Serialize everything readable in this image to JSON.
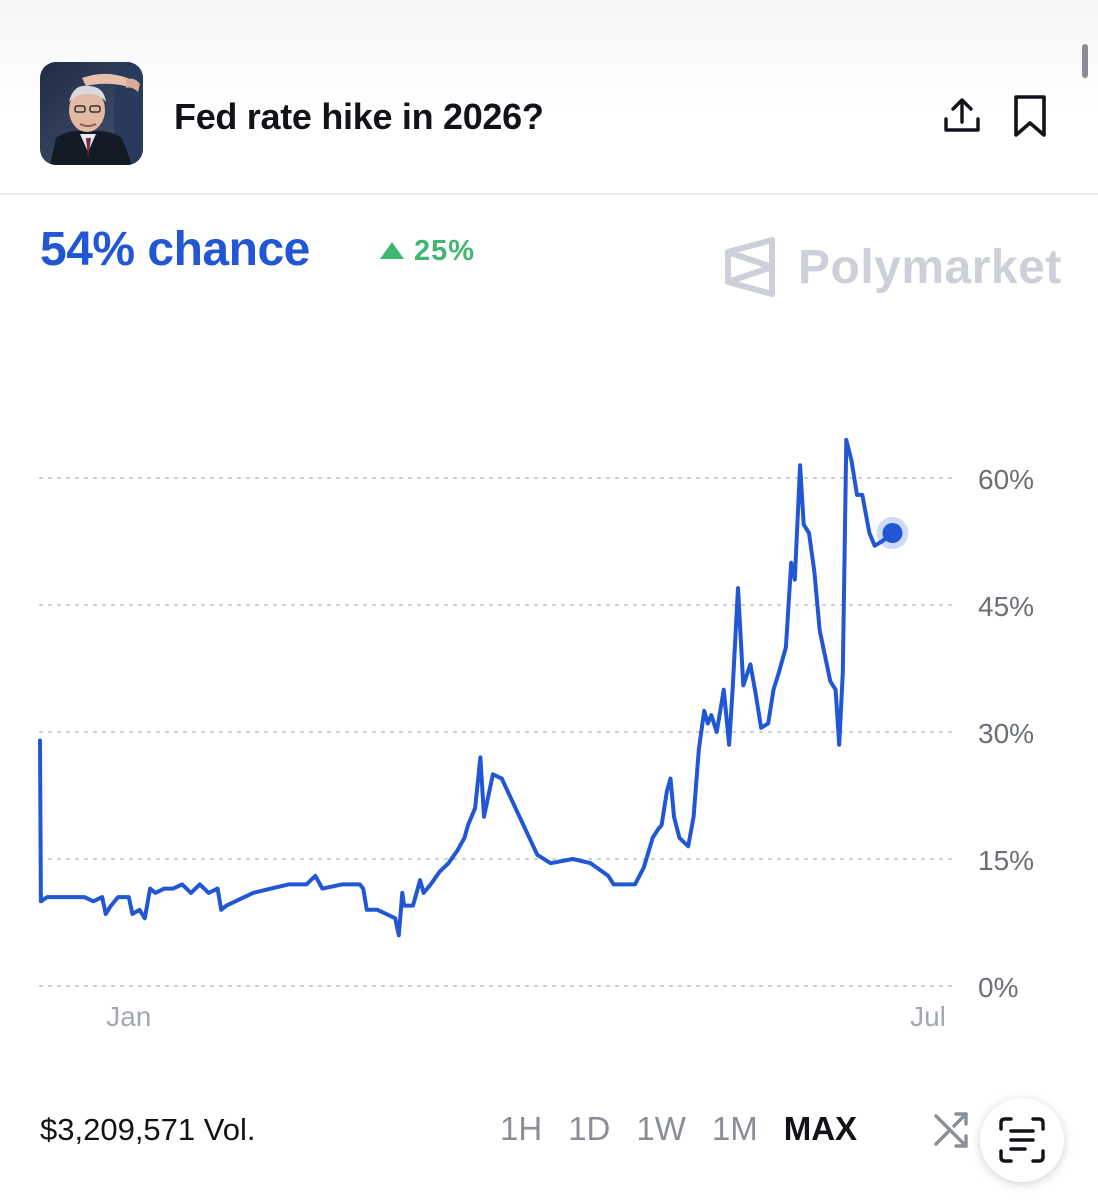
{
  "header": {
    "title": "Fed rate hike in 2026?",
    "share_icon": "share-icon",
    "bookmark_icon": "bookmark-icon"
  },
  "summary": {
    "chance": "54% chance",
    "change": "25%",
    "brand": "Polymarket",
    "accent": "#2156d4",
    "up_color": "#3fb672"
  },
  "chart_data": {
    "type": "line",
    "grid": true,
    "legend": "none",
    "ylim": [
      0,
      68
    ],
    "yticks": [
      "0%",
      "15%",
      "30%",
      "45%",
      "60%"
    ],
    "ytick_values": [
      0,
      15,
      30,
      45,
      60
    ],
    "x_ticks": [
      {
        "label": "Jan",
        "x": 0.1
      },
      {
        "label": "Jul",
        "x": 1.0
      }
    ],
    "xlim": [
      0,
      1
    ],
    "series": [
      {
        "color": "#2156d4",
        "points": [
          [
            0.0,
            29
          ],
          [
            0.001,
            10
          ],
          [
            0.008,
            10.5
          ],
          [
            0.03,
            10.5
          ],
          [
            0.05,
            10.5
          ],
          [
            0.06,
            10
          ],
          [
            0.07,
            10.5
          ],
          [
            0.074,
            8.5
          ],
          [
            0.08,
            9.5
          ],
          [
            0.088,
            10.5
          ],
          [
            0.1,
            10.5
          ],
          [
            0.104,
            8.5
          ],
          [
            0.112,
            9
          ],
          [
            0.118,
            8
          ],
          [
            0.124,
            11.5
          ],
          [
            0.13,
            11
          ],
          [
            0.14,
            11.5
          ],
          [
            0.15,
            11.5
          ],
          [
            0.16,
            12
          ],
          [
            0.17,
            11
          ],
          [
            0.18,
            12
          ],
          [
            0.19,
            11
          ],
          [
            0.2,
            11.5
          ],
          [
            0.204,
            9
          ],
          [
            0.21,
            9.5
          ],
          [
            0.22,
            10
          ],
          [
            0.24,
            11
          ],
          [
            0.26,
            11.5
          ],
          [
            0.28,
            12
          ],
          [
            0.3,
            12
          ],
          [
            0.31,
            13
          ],
          [
            0.318,
            11.5
          ],
          [
            0.34,
            12
          ],
          [
            0.36,
            12
          ],
          [
            0.364,
            11.5
          ],
          [
            0.368,
            9
          ],
          [
            0.38,
            9
          ],
          [
            0.39,
            8.5
          ],
          [
            0.4,
            8
          ],
          [
            0.404,
            6
          ],
          [
            0.408,
            11
          ],
          [
            0.41,
            9.5
          ],
          [
            0.42,
            9.5
          ],
          [
            0.428,
            12.5
          ],
          [
            0.432,
            11
          ],
          [
            0.44,
            12
          ],
          [
            0.45,
            13.5
          ],
          [
            0.46,
            14.5
          ],
          [
            0.47,
            16
          ],
          [
            0.478,
            17.5
          ],
          [
            0.482,
            19
          ],
          [
            0.49,
            21
          ],
          [
            0.496,
            27
          ],
          [
            0.5,
            20
          ],
          [
            0.51,
            25
          ],
          [
            0.52,
            24.5
          ],
          [
            0.54,
            20
          ],
          [
            0.56,
            15.5
          ],
          [
            0.575,
            14.5
          ],
          [
            0.6,
            15
          ],
          [
            0.62,
            14.5
          ],
          [
            0.64,
            13
          ],
          [
            0.646,
            12
          ],
          [
            0.66,
            12
          ],
          [
            0.67,
            12
          ],
          [
            0.68,
            14
          ],
          [
            0.69,
            17.5
          ],
          [
            0.696,
            18.5
          ],
          [
            0.7,
            19
          ],
          [
            0.706,
            23
          ],
          [
            0.71,
            24.5
          ],
          [
            0.714,
            20
          ],
          [
            0.72,
            17.5
          ],
          [
            0.73,
            16.5
          ],
          [
            0.736,
            20
          ],
          [
            0.742,
            28
          ],
          [
            0.748,
            32.5
          ],
          [
            0.752,
            31
          ],
          [
            0.756,
            32
          ],
          [
            0.762,
            30
          ],
          [
            0.77,
            35
          ],
          [
            0.776,
            28.5
          ],
          [
            0.78,
            35
          ],
          [
            0.786,
            47
          ],
          [
            0.792,
            35.5
          ],
          [
            0.8,
            38
          ],
          [
            0.806,
            34.5
          ],
          [
            0.812,
            30.5
          ],
          [
            0.82,
            31
          ],
          [
            0.826,
            35
          ],
          [
            0.832,
            37
          ],
          [
            0.84,
            40
          ],
          [
            0.846,
            50
          ],
          [
            0.85,
            48
          ],
          [
            0.856,
            61.5
          ],
          [
            0.86,
            54.5
          ],
          [
            0.866,
            53.5
          ],
          [
            0.872,
            49
          ],
          [
            0.878,
            42
          ],
          [
            0.884,
            39
          ],
          [
            0.89,
            36
          ],
          [
            0.896,
            35
          ],
          [
            0.9,
            28.5
          ],
          [
            0.904,
            37
          ],
          [
            0.908,
            64.5
          ],
          [
            0.914,
            62
          ],
          [
            0.92,
            58
          ],
          [
            0.926,
            58
          ],
          [
            0.934,
            53.5
          ],
          [
            0.94,
            52
          ],
          [
            0.948,
            52.5
          ],
          [
            0.96,
            53.5
          ]
        ]
      }
    ],
    "end_point": [
      0.96,
      53.5
    ]
  },
  "footer": {
    "volume": "$3,209,571 Vol.",
    "ranges": [
      "1H",
      "1D",
      "1W",
      "1M",
      "MAX"
    ],
    "active_range": "MAX",
    "shuffle_icon": "shuffle-icon",
    "scan_icon": "scan-text-icon"
  }
}
